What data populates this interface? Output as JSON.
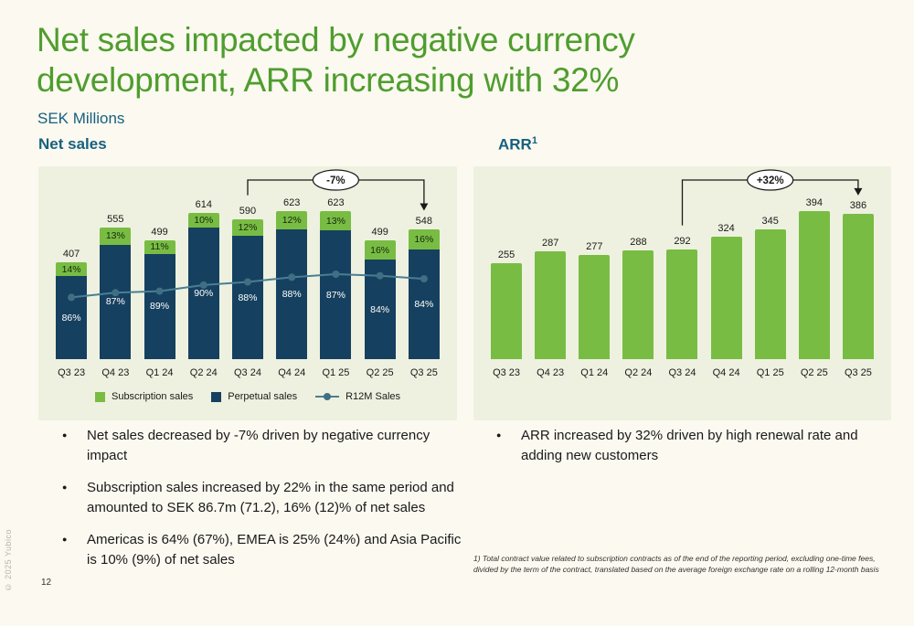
{
  "slide": {
    "title_lines": [
      "Net sales impacted by negative currency",
      "development, ARR increasing with 32%"
    ],
    "subtitle": "SEK Millions",
    "page_number": "12",
    "copyright": "© 2025 Yubico"
  },
  "headers": {
    "net_sales": "Net sales",
    "arr": "ARR",
    "arr_sup": "1"
  },
  "colors": {
    "title_green": "#4f9d2e",
    "heading_teal": "#17607f",
    "bar_green": "#79bc43",
    "bar_navy": "#16405f",
    "line": "#4a7e93",
    "line_dot": "#3f6f85",
    "panel_bg": "#eef1df",
    "page_bg": "#fbf9f0"
  },
  "chart_data": [
    {
      "type": "bar",
      "stacked": true,
      "title": "Net sales",
      "categories": [
        "Q3 23",
        "Q4 23",
        "Q1 24",
        "Q2 24",
        "Q3 24",
        "Q4 24",
        "Q1 25",
        "Q2 25",
        "Q3 25"
      ],
      "totals": [
        407,
        555,
        499,
        614,
        590,
        623,
        623,
        499,
        548
      ],
      "series": [
        {
          "name": "Subscription sales",
          "pct": [
            14,
            13,
            11,
            10,
            12,
            12,
            13,
            16,
            16
          ]
        },
        {
          "name": "Perpetual sales",
          "pct": [
            86,
            87,
            89,
            90,
            88,
            88,
            87,
            84,
            84
          ]
        }
      ],
      "r12m": {
        "name": "R12M Sales",
        "plot_fraction": [
          0.4,
          0.43,
          0.44,
          0.48,
          0.5,
          0.53,
          0.55,
          0.54,
          0.52
        ]
      },
      "legend": [
        "Subscription sales",
        "Perpetual sales",
        "R12M Sales"
      ],
      "annotation": {
        "label": "-7%",
        "from_index": 4,
        "to_index": 8
      },
      "ylim": [
        0,
        650
      ],
      "ylabel": "SEK Millions",
      "grid": false
    },
    {
      "type": "bar",
      "stacked": false,
      "title": "ARR",
      "categories": [
        "Q3 23",
        "Q4 23",
        "Q1 24",
        "Q2 24",
        "Q3 24",
        "Q4 24",
        "Q1 25",
        "Q2 25",
        "Q3 25"
      ],
      "values": [
        255,
        287,
        277,
        288,
        292,
        324,
        345,
        394,
        386
      ],
      "annotation": {
        "label": "+32%",
        "from_index": 4,
        "to_index": 8
      },
      "ylim": [
        0,
        410
      ],
      "ylabel": "SEK Millions",
      "grid": false
    }
  ],
  "bullets_left": [
    "Net sales decreased by -7% driven by negative currency impact",
    "Subscription sales increased by 22% in the same period and amounted to SEK 86.7m (71.2), 16% (12)% of net sales",
    "Americas is 64% (67%), EMEA is 25% (24%) and Asia Pacific is 10% (9%) of net sales"
  ],
  "bullets_right": [
    "ARR increased by 32% driven by high renewal rate and adding new customers"
  ],
  "footnote": "1) Total contract value related to subscription contracts as of the end of the reporting period, excluding one-time fees, divided by the term of the contract, translated based on the average foreign exchange rate on a rolling 12-month basis"
}
